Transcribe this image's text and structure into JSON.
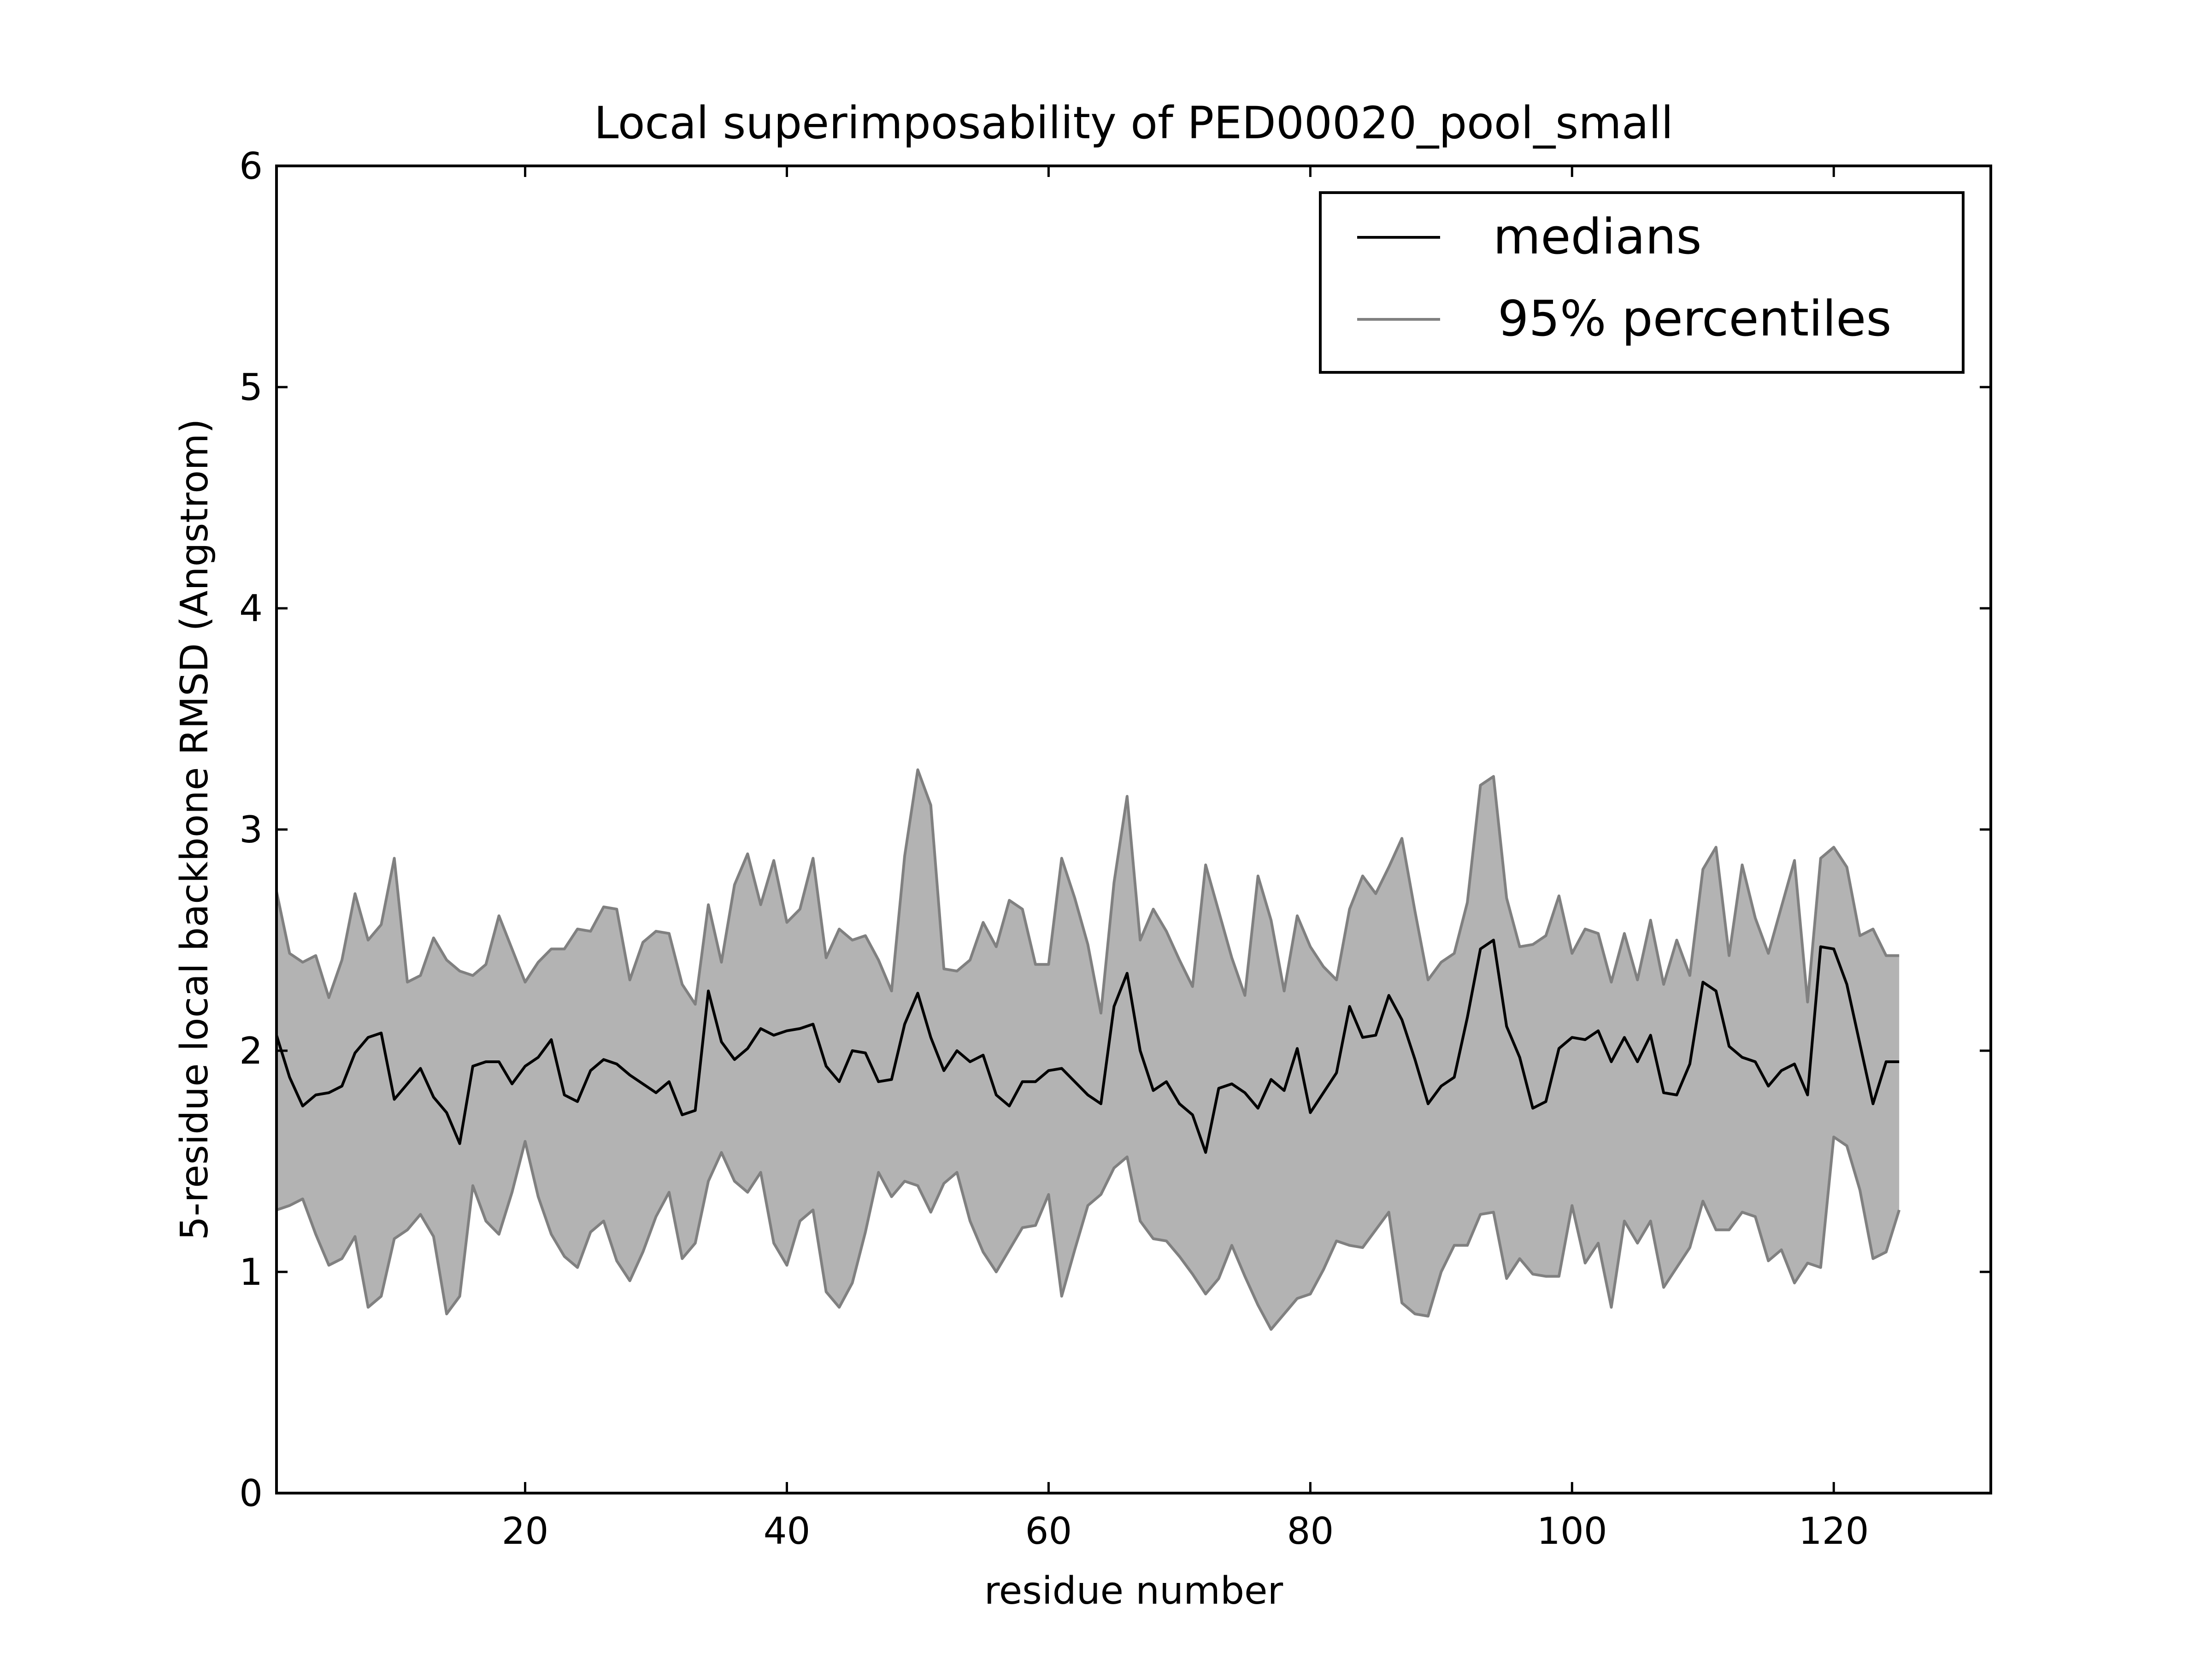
{
  "chart_data": {
    "type": "area",
    "title": "Local superimposability of PED00020_pool_small",
    "xlabel": "residue number",
    "ylabel": "5-residue local backbone RMSD (Angstrom)",
    "xlim": [
      1,
      132
    ],
    "ylim": [
      0,
      6
    ],
    "xticks": [
      20,
      40,
      60,
      80,
      100,
      120
    ],
    "yticks": [
      0,
      1,
      2,
      3,
      4,
      5,
      6
    ],
    "grid": false,
    "legend_position": "top-right",
    "colors": {
      "median": "#000000",
      "percentile_line": "#808080",
      "band_fill": "#b3b3b3"
    },
    "series": [
      {
        "name": "medians",
        "x": [
          1,
          2,
          3,
          4,
          5,
          6,
          7,
          8,
          9,
          10,
          11,
          12,
          13,
          14,
          15,
          16,
          17,
          18,
          19,
          20,
          21,
          22,
          23,
          24,
          25,
          26,
          27,
          28,
          29,
          30,
          31,
          32,
          33,
          34,
          35,
          36,
          37,
          38,
          39,
          40,
          41,
          42,
          43,
          44,
          45,
          46,
          47,
          48,
          49,
          50,
          51,
          52,
          53,
          54,
          55,
          56,
          57,
          58,
          59,
          60,
          61,
          62,
          63,
          64,
          65,
          66,
          67,
          68,
          69,
          70,
          71,
          72,
          73,
          74,
          75,
          76,
          77,
          78,
          79,
          80,
          81,
          82,
          83,
          84,
          85,
          86,
          87,
          88,
          89,
          90,
          91,
          92,
          93,
          94,
          95,
          96,
          97,
          98,
          99,
          100,
          101,
          102,
          103,
          104,
          105,
          106,
          107,
          108,
          109,
          110,
          111,
          112,
          113,
          114,
          115,
          116,
          117,
          118,
          119,
          120,
          121,
          122,
          123,
          124,
          125
        ],
        "y": [
          2.07,
          1.88,
          1.75,
          1.8,
          1.81,
          1.84,
          1.99,
          2.06,
          2.08,
          1.78,
          1.85,
          1.92,
          1.79,
          1.72,
          1.58,
          1.93,
          1.95,
          1.95,
          1.85,
          1.93,
          1.97,
          2.05,
          1.8,
          1.77,
          1.91,
          1.96,
          1.94,
          1.89,
          1.85,
          1.81,
          1.86,
          1.71,
          1.73,
          2.27,
          2.04,
          1.96,
          2.01,
          2.1,
          2.07,
          2.09,
          2.1,
          2.12,
          1.93,
          1.86,
          2.0,
          1.99,
          1.86,
          1.87,
          2.12,
          2.26,
          2.06,
          1.91,
          2.0,
          1.95,
          1.98,
          1.8,
          1.75,
          1.86,
          1.86,
          1.91,
          1.92,
          1.86,
          1.8,
          1.76,
          2.2,
          2.35,
          2.0,
          1.82,
          1.86,
          1.76,
          1.71,
          1.54,
          1.83,
          1.85,
          1.81,
          1.74,
          1.87,
          1.82,
          2.01,
          1.72,
          1.81,
          1.9,
          2.2,
          2.06,
          2.07,
          2.25,
          2.14,
          1.96,
          1.76,
          1.84,
          1.88,
          2.15,
          2.46,
          2.5,
          2.11,
          1.97,
          1.74,
          1.77,
          2.01,
          2.06,
          2.05,
          2.09,
          1.95,
          2.06,
          1.95,
          2.07,
          1.81,
          1.8,
          1.94,
          2.31,
          2.27,
          2.02,
          1.97,
          1.95,
          1.84,
          1.91,
          1.94,
          1.8,
          2.47,
          2.46,
          2.3,
          2.03,
          1.76,
          1.95,
          1.95
        ]
      },
      {
        "name": "95% percentiles",
        "x": [
          1,
          2,
          3,
          4,
          5,
          6,
          7,
          8,
          9,
          10,
          11,
          12,
          13,
          14,
          15,
          16,
          17,
          18,
          19,
          20,
          21,
          22,
          23,
          24,
          25,
          26,
          27,
          28,
          29,
          30,
          31,
          32,
          33,
          34,
          35,
          36,
          37,
          38,
          39,
          40,
          41,
          42,
          43,
          44,
          45,
          46,
          47,
          48,
          49,
          50,
          51,
          52,
          53,
          54,
          55,
          56,
          57,
          58,
          59,
          60,
          61,
          62,
          63,
          64,
          65,
          66,
          67,
          68,
          69,
          70,
          71,
          72,
          73,
          74,
          75,
          76,
          77,
          78,
          79,
          80,
          81,
          82,
          83,
          84,
          85,
          86,
          87,
          88,
          89,
          90,
          91,
          92,
          93,
          94,
          95,
          96,
          97,
          98,
          99,
          100,
          101,
          102,
          103,
          104,
          105,
          106,
          107,
          108,
          109,
          110,
          111,
          112,
          113,
          114,
          115,
          116,
          117,
          118,
          119,
          120,
          121,
          122,
          123,
          124,
          125
        ],
        "upper": [
          2.72,
          2.44,
          2.4,
          2.43,
          2.24,
          2.41,
          2.71,
          2.5,
          2.57,
          2.87,
          2.31,
          2.34,
          2.51,
          2.41,
          2.36,
          2.34,
          2.39,
          2.61,
          2.46,
          2.31,
          2.4,
          2.46,
          2.46,
          2.55,
          2.54,
          2.65,
          2.64,
          2.32,
          2.49,
          2.54,
          2.53,
          2.3,
          2.21,
          2.66,
          2.4,
          2.75,
          2.89,
          2.66,
          2.86,
          2.58,
          2.64,
          2.87,
          2.42,
          2.55,
          2.5,
          2.52,
          2.41,
          2.27,
          2.88,
          3.27,
          3.11,
          2.37,
          2.36,
          2.41,
          2.58,
          2.47,
          2.68,
          2.64,
          2.39,
          2.39,
          2.87,
          2.69,
          2.48,
          2.17,
          2.76,
          3.15,
          2.5,
          2.64,
          2.54,
          2.41,
          2.29,
          2.84,
          2.63,
          2.42,
          2.25,
          2.79,
          2.59,
          2.27,
          2.61,
          2.47,
          2.38,
          2.32,
          2.64,
          2.79,
          2.71,
          2.83,
          2.96,
          2.63,
          2.32,
          2.4,
          2.44,
          2.67,
          3.2,
          3.24,
          2.69,
          2.47,
          2.48,
          2.52,
          2.7,
          2.44,
          2.55,
          2.53,
          2.31,
          2.53,
          2.32,
          2.59,
          2.3,
          2.5,
          2.34,
          2.82,
          2.92,
          2.43,
          2.84,
          2.6,
          2.44,
          2.65,
          2.86,
          2.22,
          2.87,
          2.92,
          2.83,
          2.52,
          2.55,
          2.43,
          2.43
        ],
        "lower": [
          1.28,
          1.3,
          1.33,
          1.17,
          1.03,
          1.06,
          1.16,
          0.84,
          0.89,
          1.15,
          1.19,
          1.26,
          1.16,
          0.81,
          0.89,
          1.39,
          1.23,
          1.17,
          1.36,
          1.59,
          1.34,
          1.17,
          1.07,
          1.02,
          1.18,
          1.23,
          1.05,
          0.96,
          1.09,
          1.25,
          1.36,
          1.06,
          1.13,
          1.41,
          1.54,
          1.41,
          1.36,
          1.45,
          1.13,
          1.03,
          1.23,
          1.28,
          0.91,
          0.84,
          0.95,
          1.18,
          1.45,
          1.34,
          1.41,
          1.39,
          1.27,
          1.4,
          1.45,
          1.23,
          1.09,
          1.0,
          1.1,
          1.2,
          1.21,
          1.35,
          0.89,
          1.1,
          1.3,
          1.35,
          1.47,
          1.52,
          1.23,
          1.15,
          1.14,
          1.07,
          0.99,
          0.9,
          0.97,
          1.12,
          0.98,
          0.85,
          0.74,
          0.81,
          0.88,
          0.9,
          1.01,
          1.14,
          1.12,
          1.11,
          1.19,
          1.27,
          0.86,
          0.81,
          0.8,
          1.0,
          1.12,
          1.12,
          1.26,
          1.27,
          0.97,
          1.06,
          0.99,
          0.98,
          0.98,
          1.3,
          1.04,
          1.13,
          0.84,
          1.23,
          1.13,
          1.23,
          0.93,
          1.02,
          1.11,
          1.32,
          1.19,
          1.19,
          1.27,
          1.25,
          1.05,
          1.1,
          0.95,
          1.04,
          1.02,
          1.61,
          1.57,
          1.37,
          1.06,
          1.09,
          1.28
        ]
      }
    ]
  }
}
